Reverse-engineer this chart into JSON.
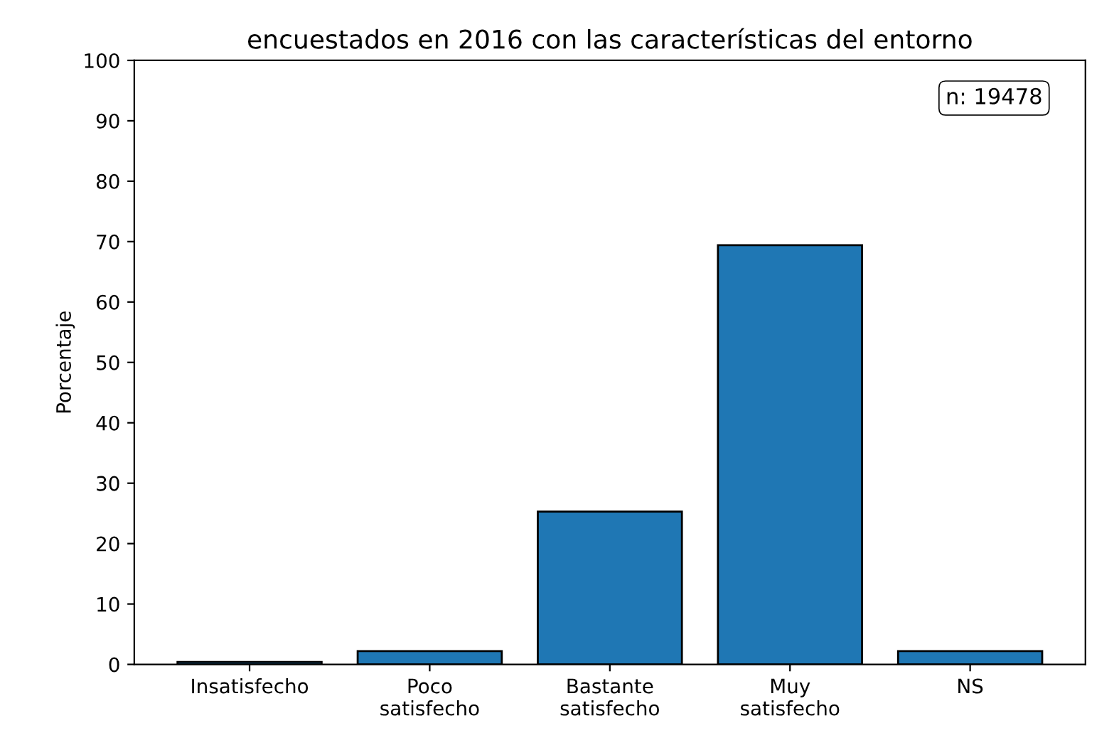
{
  "chart_data": {
    "type": "bar",
    "title": "encuestados en 2016 con las características del entorno",
    "ylabel": "Porcentaje",
    "categories": [
      "Insatisfecho",
      "Poco\nsatisfecho",
      "Bastante\nsatisfecho",
      "Muy\nsatisfecho",
      "NS"
    ],
    "values": [
      0.4,
      2.2,
      25.3,
      69.4,
      2.2
    ],
    "color": "#1f77b4",
    "ylim": [
      0,
      100
    ],
    "yticks": [
      0,
      10,
      20,
      30,
      40,
      50,
      60,
      70,
      80,
      90,
      100
    ],
    "grid": false,
    "annotations": [
      "n: 19478"
    ]
  }
}
